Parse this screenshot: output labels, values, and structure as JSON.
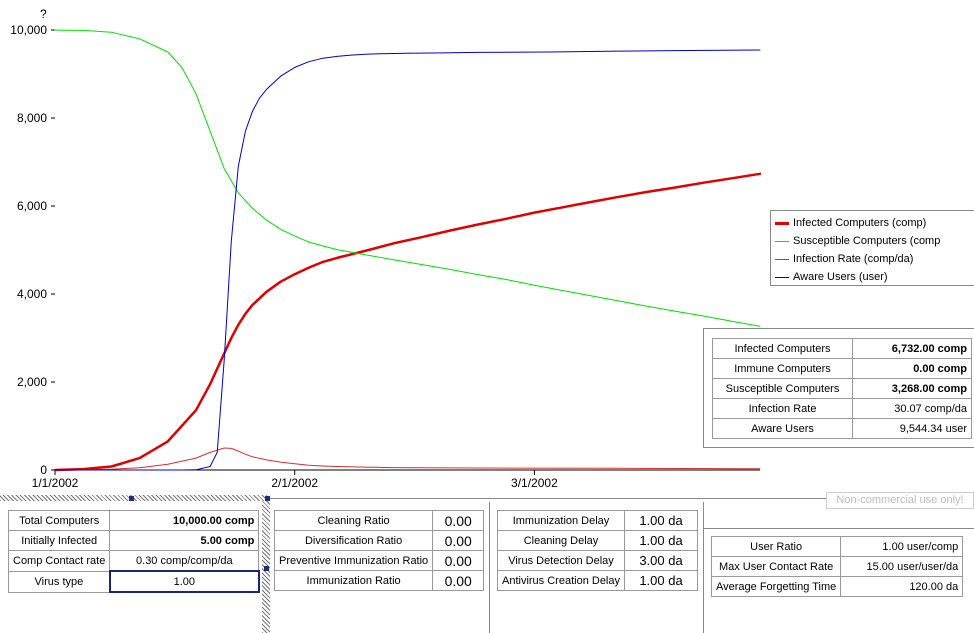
{
  "chart_data": {
    "type": "line",
    "ylabel": "?",
    "ylim": [
      0,
      10000
    ],
    "y_ticks": [
      "0",
      "2,000",
      "4,000",
      "6,000",
      "8,000",
      "10,000"
    ],
    "x_ticks": [
      "1/1/2002",
      "2/1/2002",
      "3/1/2002"
    ],
    "x_range_days": [
      0,
      100
    ],
    "x_tick_days": [
      0,
      34,
      68
    ],
    "legend_position": "right",
    "series": [
      {
        "name": "Infected Computers (comp)",
        "color": "#e00000",
        "width": 2.5,
        "x": [
          0,
          4,
          8,
          12,
          16,
          20,
          22,
          24,
          25,
          26,
          27,
          28,
          30,
          32,
          34,
          36,
          38,
          40,
          42,
          44,
          48,
          52,
          56,
          60,
          64,
          68,
          72,
          76,
          80,
          84,
          88,
          92,
          96,
          100
        ],
        "y": [
          0,
          20,
          80,
          270,
          650,
          1360,
          1950,
          2650,
          3000,
          3300,
          3550,
          3750,
          4050,
          4280,
          4450,
          4600,
          4730,
          4820,
          4900,
          4980,
          5150,
          5290,
          5440,
          5580,
          5710,
          5850,
          5970,
          6090,
          6210,
          6320,
          6420,
          6530,
          6630,
          6732
        ]
      },
      {
        "name": "Susceptible Computers (comp",
        "color": "#00e000",
        "width": 1,
        "x": [
          0,
          4,
          8,
          12,
          16,
          18,
          20,
          22,
          24,
          26,
          28,
          30,
          32,
          34,
          36,
          40,
          44,
          48,
          52,
          56,
          60,
          64,
          68,
          72,
          76,
          80,
          84,
          88,
          92,
          96,
          100
        ],
        "y": [
          9998,
          9990,
          9950,
          9800,
          9500,
          9150,
          8550,
          7700,
          6850,
          6300,
          5950,
          5680,
          5470,
          5320,
          5180,
          5010,
          4890,
          4780,
          4670,
          4560,
          4440,
          4330,
          4200,
          4080,
          3960,
          3840,
          3720,
          3610,
          3500,
          3380,
          3268
        ]
      },
      {
        "name": "Infection Rate (comp/da)",
        "color": "#d03030",
        "width": 1,
        "x": [
          0,
          4,
          8,
          12,
          16,
          20,
          22,
          24,
          25,
          26,
          27,
          28,
          30,
          32,
          34,
          36,
          38,
          40,
          44,
          48,
          60,
          80,
          100
        ],
        "y": [
          0,
          5,
          18,
          50,
          130,
          270,
          400,
          500,
          490,
          430,
          360,
          300,
          230,
          180,
          140,
          110,
          90,
          80,
          65,
          55,
          45,
          38,
          30.07
        ]
      },
      {
        "name": "Aware Users (user)",
        "color": "#0000cc",
        "width": 1,
        "x": [
          0,
          18,
          20,
          22,
          23,
          24,
          25,
          26,
          27,
          28,
          29,
          30,
          32,
          34,
          36,
          38,
          40,
          42,
          44,
          46,
          50,
          55,
          60,
          70,
          80,
          90,
          100
        ],
        "y": [
          0,
          0,
          5,
          80,
          400,
          2500,
          5200,
          6900,
          7700,
          8150,
          8450,
          8650,
          8950,
          9150,
          9280,
          9360,
          9400,
          9430,
          9450,
          9460,
          9470,
          9480,
          9490,
          9500,
          9520,
          9535,
          9544.34
        ]
      }
    ]
  },
  "results": [
    {
      "label": "Infected Computers",
      "value": "6,732.00 comp",
      "bold": true
    },
    {
      "label": "Immune Computers",
      "value": "0.00 comp",
      "bold": true
    },
    {
      "label": "Susceptible Computers",
      "value": "3,268.00 comp",
      "bold": true
    },
    {
      "label": "Infection Rate",
      "value": "30.07 comp/da",
      "bold": false
    },
    {
      "label": "Aware Users",
      "value": "9,544.34 user",
      "bold": false
    }
  ],
  "watermark": "Non-commercial use only!",
  "panel1": {
    "total_computers": {
      "label": "Total Computers",
      "value": "10,000.00 comp"
    },
    "initially_infected": {
      "label": "Initially Infected",
      "value": "5.00 comp"
    },
    "comp_contact_rate": {
      "label": "Comp Contact rate",
      "value": "0.30 comp/comp/da"
    },
    "virus_type": {
      "label": "Virus type",
      "value": "1.00"
    }
  },
  "panel2": {
    "cleaning_ratio": {
      "label": "Cleaning Ratio",
      "value": "0.00"
    },
    "diversification_ratio": {
      "label": "Diversification Ratio",
      "value": "0.00"
    },
    "preventive_immunization_ratio": {
      "label": "Preventive Immunization Ratio",
      "value": "0.00"
    },
    "immunization_ratio": {
      "label": "Immunization Ratio",
      "value": "0.00"
    }
  },
  "panel3": {
    "immunization_delay": {
      "label": "Immunization Delay",
      "value": "1.00 da"
    },
    "cleaning_delay": {
      "label": "Cleaning Delay",
      "value": "1.00 da"
    },
    "virus_detection_delay": {
      "label": "Virus Detection Delay",
      "value": "3.00 da"
    },
    "antivirus_creation_delay": {
      "label": "Antivirus Creation Delay",
      "value": "1.00 da"
    }
  },
  "panel4": {
    "user_ratio": {
      "label": "User Ratio",
      "value": "1.00 user/comp"
    },
    "max_user_contact_rate": {
      "label": "Max User Contact Rate",
      "value": "15.00 user/user/da"
    },
    "average_forgetting_time": {
      "label": "Average Forgetting Time",
      "value": "120.00 da"
    }
  }
}
